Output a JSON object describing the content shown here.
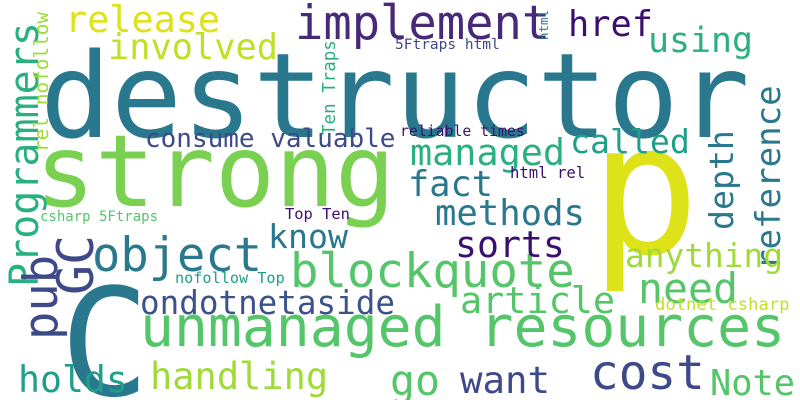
{
  "words": [
    {
      "text": "destructor",
      "color": "#2a788e",
      "vertical": false
    },
    {
      "text": "strong",
      "color": "#7ad151",
      "vertical": false
    },
    {
      "text": "p",
      "color": "#dde318",
      "vertical": false
    },
    {
      "text": "C",
      "color": "#2a788e",
      "vertical": false
    },
    {
      "text": "unmanaged resources",
      "color": "#54c568",
      "vertical": false
    },
    {
      "text": "implement",
      "color": "#482878",
      "vertical": false
    },
    {
      "text": "reference",
      "color": "#2a788e",
      "vertical": true
    },
    {
      "text": "blockquote",
      "color": "#54c568",
      "vertical": false
    },
    {
      "text": "object",
      "color": "#2a788e",
      "vertical": false
    },
    {
      "text": "Programmers",
      "color": "#2ab07f",
      "vertical": true
    },
    {
      "text": "cost",
      "color": "#3e4989",
      "vertical": false
    },
    {
      "text": "release",
      "color": "#dde318",
      "vertical": false
    },
    {
      "text": "involved",
      "color": "#c2df23",
      "vertical": false
    },
    {
      "text": "href",
      "color": "#3b0f70",
      "vertical": false
    },
    {
      "text": "using",
      "color": "#2ab07f",
      "vertical": false
    },
    {
      "text": "managed",
      "color": "#2ab07f",
      "vertical": false
    },
    {
      "text": "called",
      "color": "#1f9e89",
      "vertical": false
    },
    {
      "text": "fact",
      "color": "#2a788e",
      "vertical": false
    },
    {
      "text": "methods",
      "color": "#2a788e",
      "vertical": false
    },
    {
      "text": "depth",
      "color": "#2a788e",
      "vertical": true
    },
    {
      "text": "sorts",
      "color": "#3b0f70",
      "vertical": false
    },
    {
      "text": "know",
      "color": "#2a788e",
      "vertical": false
    },
    {
      "text": "article",
      "color": "#54c568",
      "vertical": false
    },
    {
      "text": "ondotnetaside",
      "color": "#3b528b",
      "vertical": false
    },
    {
      "text": "need",
      "color": "#54c568",
      "vertical": false
    },
    {
      "text": "handling",
      "color": "#a0da39",
      "vertical": false
    },
    {
      "text": "holds",
      "color": "#1f9e89",
      "vertical": false
    },
    {
      "text": "go",
      "color": "#54c568",
      "vertical": false
    },
    {
      "text": "want",
      "color": "#3e4989",
      "vertical": false
    },
    {
      "text": "Note",
      "color": "#54c568",
      "vertical": false
    },
    {
      "text": "pub",
      "color": "#3e4989",
      "vertical": true
    },
    {
      "text": "GC",
      "color": "#3e4989",
      "vertical": true
    },
    {
      "text": "anything",
      "color": "#a0da39",
      "vertical": false
    },
    {
      "text": "consume valuable",
      "color": "#3e4989",
      "vertical": false
    },
    {
      "text": "5Ftraps html",
      "color": "#3e4989",
      "vertical": false
    },
    {
      "text": "Ten Traps",
      "color": "#2ab07f",
      "vertical": true
    },
    {
      "text": "html",
      "color": "#2a788e",
      "vertical": true
    },
    {
      "text": "html rel",
      "color": "#3b0f70",
      "vertical": false
    },
    {
      "text": "reliable times",
      "color": "#3b0f70",
      "vertical": false
    },
    {
      "text": "Top Ten",
      "color": "#3b0f70",
      "vertical": false
    },
    {
      "text": "csharp 5Ftraps",
      "color": "#54c568",
      "vertical": false
    },
    {
      "text": "rel nofollow",
      "color": "#a0da39",
      "vertical": true
    },
    {
      "text": "dotnet csharp",
      "color": "#c2df23",
      "vertical": false
    },
    {
      "text": "nofollow Top",
      "color": "#1f9e89",
      "vertical": false
    }
  ]
}
